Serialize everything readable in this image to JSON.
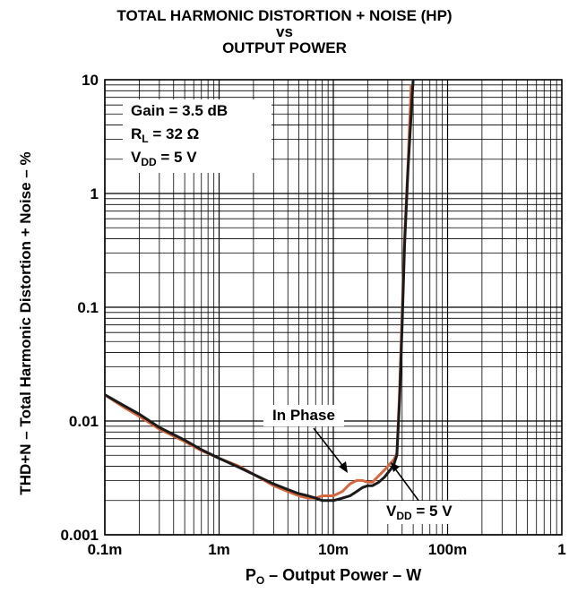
{
  "chart_data": {
    "type": "line",
    "title_lines": [
      "TOTAL HARMONIC DISTORTION + NOISE (HP)",
      "vs",
      "OUTPUT POWER"
    ],
    "xlabel": "P",
    "xlabel_sub": "O",
    "xlabel_rest": " – Output Power – W",
    "ylabel": "THD+N – Total Harmonic Distortion + Noise – %",
    "x_scale": "log",
    "y_scale": "log",
    "xlim": [
      0.0001,
      1
    ],
    "ylim": [
      0.001,
      10
    ],
    "x_ticks": [
      0.0001,
      0.001,
      0.01,
      0.1,
      1
    ],
    "x_tick_labels": [
      "0.1m",
      "1m",
      "10m",
      "100m",
      "1"
    ],
    "y_ticks": [
      0.001,
      0.01,
      0.1,
      1,
      10
    ],
    "y_tick_labels": [
      "0.001",
      "0.01",
      "0.1",
      "1",
      "10"
    ],
    "grid": true,
    "conditions": {
      "gain": "Gain = 3.5 dB",
      "rl_main": "R",
      "rl_sub": "L",
      "rl_rest": " = 32 Ω",
      "vdd_main": "V",
      "vdd_sub": "DD",
      "vdd_rest": " = 5 V"
    },
    "annotations": {
      "in_phase": "In Phase",
      "vdd_main": "V",
      "vdd_sub": "DD",
      "vdd_rest": " = 5 V"
    },
    "colors": {
      "in_phase": "#d4673f",
      "vdd": "#1a1a1a",
      "grid": "#000000"
    },
    "series": [
      {
        "name": "In Phase",
        "x": [
          0.0001,
          0.00015,
          0.0002,
          0.0003,
          0.0005,
          0.0007,
          0.001,
          0.0015,
          0.002,
          0.003,
          0.004,
          0.005,
          0.006,
          0.007,
          0.008,
          0.009,
          0.01,
          0.012,
          0.014,
          0.016,
          0.018,
          0.02,
          0.022,
          0.025,
          0.028,
          0.03,
          0.032,
          0.034,
          0.036,
          0.038,
          0.04,
          0.042,
          0.045,
          0.048
        ],
        "y": [
          0.017,
          0.013,
          0.011,
          0.0085,
          0.0066,
          0.0055,
          0.0047,
          0.004,
          0.0034,
          0.0027,
          0.0024,
          0.0022,
          0.0021,
          0.0021,
          0.0022,
          0.0022,
          0.0022,
          0.0024,
          0.0028,
          0.003,
          0.003,
          0.0029,
          0.0029,
          0.0033,
          0.0037,
          0.004,
          0.0043,
          0.0046,
          0.0052,
          0.018,
          0.09,
          0.4,
          1.8,
          9
        ]
      },
      {
        "name": "VDD = 5 V",
        "x": [
          0.0001,
          0.00015,
          0.0002,
          0.0003,
          0.0005,
          0.0007,
          0.001,
          0.0015,
          0.002,
          0.003,
          0.004,
          0.005,
          0.006,
          0.007,
          0.008,
          0.009,
          0.01,
          0.012,
          0.014,
          0.016,
          0.018,
          0.02,
          0.022,
          0.025,
          0.028,
          0.03,
          0.032,
          0.034,
          0.036,
          0.038,
          0.04,
          0.042,
          0.045,
          0.05
        ],
        "y": [
          0.017,
          0.0135,
          0.0115,
          0.0088,
          0.0068,
          0.0056,
          0.0047,
          0.0039,
          0.0034,
          0.0028,
          0.0025,
          0.0023,
          0.0022,
          0.0021,
          0.002,
          0.002,
          0.002,
          0.0021,
          0.0022,
          0.0024,
          0.0026,
          0.0027,
          0.0027,
          0.0029,
          0.0032,
          0.0035,
          0.0038,
          0.0042,
          0.005,
          0.015,
          0.07,
          0.35,
          1.6,
          10
        ]
      }
    ]
  }
}
